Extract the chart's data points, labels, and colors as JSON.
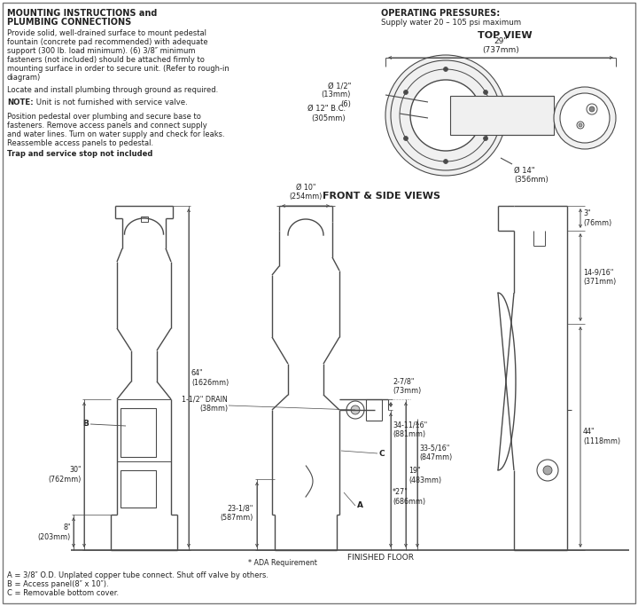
{
  "bg_color": "#ffffff",
  "line_color": "#4a4a4a",
  "text_color": "#222222",
  "heading1": "MOUNTING INSTRUCTIONS and",
  "heading2": "PLUMBING CONNECTIONS",
  "para1_lines": [
    "Provide solid, well-drained surface to mount pedestal",
    "fountain (concrete pad recommended) with adequate",
    "support (300 lb. load minimum). (6) 3/8″ minimum",
    "fasteners (not included) should be attached firmly to",
    "mounting surface in order to secure unit. (Refer to rough-in",
    "diagram)"
  ],
  "para2": "Locate and install plumbing through ground as required.",
  "note_bold": "NOTE:",
  "note_rest": " Unit is not furnished with service valve.",
  "para3_lines": [
    "Position pedestal over plumbing and secure base to",
    "fasteners. Remove access panels and connect supply",
    "and water lines. Turn on water supply and check for leaks.",
    "Reassemble access panels to pedestal."
  ],
  "trap_line": "Trap and service stop not included",
  "op_pressures": "OPERATING PRESSURES:",
  "op_sub": "Supply water 20 – 105 psi maximum",
  "top_view_label": "TOP VIEW",
  "front_side_label": "FRONT & SIDE VIEWS",
  "legend_a": "A = 3/8″ O.D. Unplated copper tube connect. Shut off valve by others.",
  "legend_b": "B = Access panel(8″ x 10″).",
  "legend_c": "C = Removable bottom cover.",
  "ada_note": "* ADA Requirement",
  "finished_floor": "FINISHED FLOOR"
}
